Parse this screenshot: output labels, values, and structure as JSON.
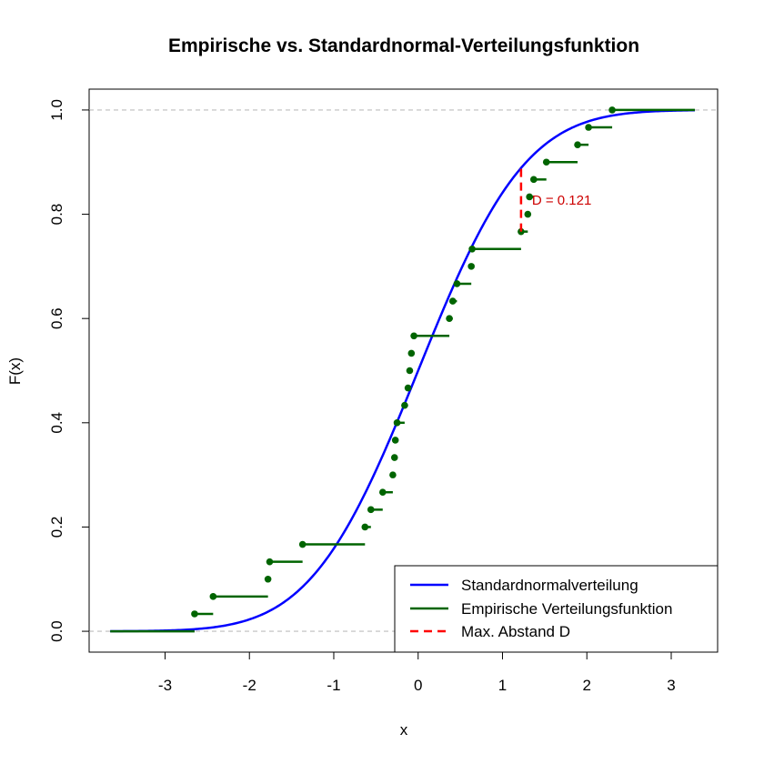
{
  "chart_data": {
    "type": "line",
    "title": "Empirische vs. Standardnormal-Verteilungsfunktion",
    "xlabel": "x",
    "ylabel": "F(x)",
    "xlim": [
      -3.9,
      3.55
    ],
    "ylim": [
      -0.04,
      1.04
    ],
    "x_ticks": [
      -3,
      -2,
      -1,
      0,
      1,
      2,
      3
    ],
    "y_ticks": [
      0.0,
      0.2,
      0.4,
      0.6,
      0.8,
      1.0
    ],
    "x_tick_labels": [
      "-3",
      "-2",
      "-1",
      "0",
      "1",
      "2",
      "3"
    ],
    "y_tick_labels": [
      "0.0",
      "0.2",
      "0.4",
      "0.6",
      "0.8",
      "1.0"
    ],
    "reference_lines_y": [
      0,
      1
    ],
    "normal_cdf": {
      "name": "Standardnormalverteilung",
      "color": "#0000ff",
      "x_range": [
        -3.65,
        3.28
      ]
    },
    "ecdf": {
      "name": "Empirische Verteilungsfunktion",
      "color": "#006400",
      "x_start": -3.65,
      "x_end": 3.28,
      "points": [
        [
          -2.65,
          0.0333
        ],
        [
          -2.43,
          0.0667
        ],
        [
          -1.78,
          0.1
        ],
        [
          -1.76,
          0.1333
        ],
        [
          -1.37,
          0.1667
        ],
        [
          -0.63,
          0.2
        ],
        [
          -0.56,
          0.2333
        ],
        [
          -0.42,
          0.2667
        ],
        [
          -0.3,
          0.3
        ],
        [
          -0.28,
          0.3333
        ],
        [
          -0.27,
          0.3667
        ],
        [
          -0.25,
          0.4
        ],
        [
          -0.16,
          0.4333
        ],
        [
          -0.12,
          0.4667
        ],
        [
          -0.1,
          0.5
        ],
        [
          -0.08,
          0.5333
        ],
        [
          -0.05,
          0.5667
        ],
        [
          0.37,
          0.6
        ],
        [
          0.41,
          0.6333
        ],
        [
          0.46,
          0.6667
        ],
        [
          0.63,
          0.7
        ],
        [
          0.64,
          0.7333
        ],
        [
          1.22,
          0.7667
        ],
        [
          1.3,
          0.8
        ],
        [
          1.32,
          0.8333
        ],
        [
          1.37,
          0.8667
        ],
        [
          1.52,
          0.9
        ],
        [
          1.89,
          0.9333
        ],
        [
          2.02,
          0.9667
        ],
        [
          2.3,
          1.0
        ]
      ]
    },
    "max_distance": {
      "name": "Max. Abstand D",
      "label": "D = 0.121",
      "x": 1.22,
      "y_from": 0.7667,
      "y_to": 0.888,
      "color": "#ff0000"
    },
    "legend": {
      "position": "bottom-right",
      "entries": [
        {
          "label": "Standardnormalverteilung",
          "color": "#0000ff",
          "dashed": false
        },
        {
          "label": "Empirische Verteilungsfunktion",
          "color": "#006400",
          "dashed": false
        },
        {
          "label": "Max. Abstand D",
          "color": "#ff0000",
          "dashed": true
        }
      ]
    }
  }
}
